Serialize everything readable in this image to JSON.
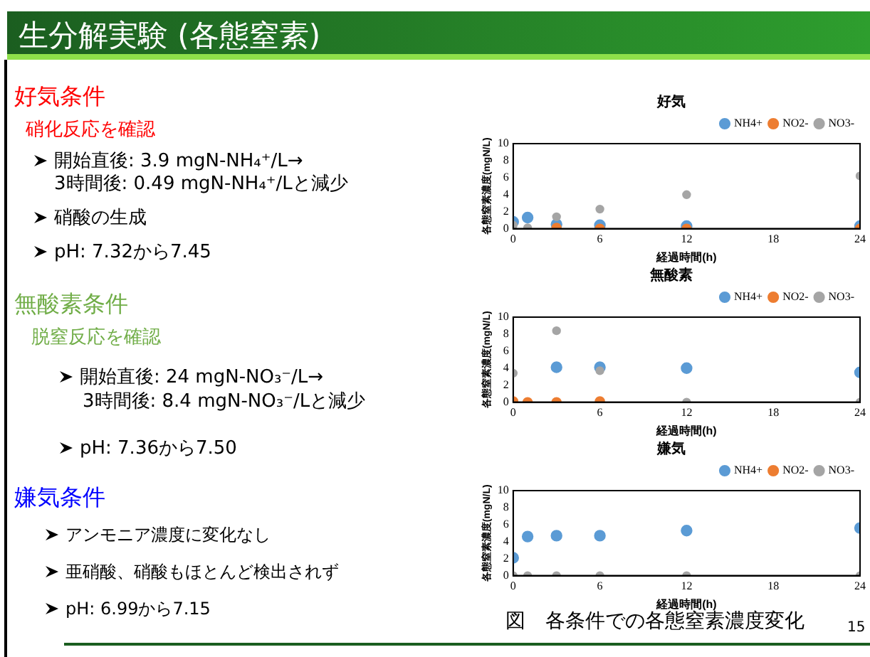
{
  "chart_data": [
    {
      "type": "other",
      "title": "生分解実験 (各態窒素)",
      "annotations": [
        "好気条件",
        "硝化反応を確認",
        "開始直後: 3.9 mgN-NH₄⁺/L→",
        "3時間後: 0.49 mgN-NH₄⁺/Lと減少",
        "硝酸の生成",
        "pH: 7.32から7.45",
        "無酸素条件",
        "脱窒反応を確認",
        "開始直後: 24 mgN-NO₃⁻/L→",
        "3時間後: 8.4 mgN-NO₃⁻/Lと減少",
        "pH: 7.36から7.50",
        "嫌気条件",
        "アンモニア濃度に変化なし",
        "亜硝酸、硝酸もほとんど検出されず",
        "pH: 6.99から7.15",
        "15"
      ]
    },
    {
      "type": "scatter",
      "title": "好気",
      "xlabel": "経過時間(h)",
      "ylabel": "各態窒素濃度(mgN/L)",
      "x": [
        0,
        1,
        3,
        6,
        12,
        24
      ],
      "xlim": [
        0,
        24
      ],
      "xticks": [
        0,
        6,
        12,
        18,
        24
      ],
      "ylim": [
        0,
        10
      ],
      "yticks": [
        0,
        2,
        4,
        6,
        8,
        10
      ],
      "legend": "top right",
      "marker": "circle",
      "grid": false,
      "series": [
        {
          "name": "NH4+",
          "color": "#5b9bd5",
          "values": [
            0.8,
            1.3,
            0.5,
            0.4,
            0.3,
            0.3
          ]
        },
        {
          "name": "NO2-",
          "color": "#ed7d31",
          "values": [
            null,
            null,
            0.1,
            0,
            0,
            0
          ]
        },
        {
          "name": "NO3-",
          "color": "#a5a5a5",
          "values": [
            0.4,
            0.1,
            1.4,
            2.3,
            4.0,
            6.2
          ]
        }
      ]
    },
    {
      "type": "scatter",
      "title": "無酸素",
      "xlabel": "経過時間(h)",
      "ylabel": "各態窒素濃度(mgN/L)",
      "x": [
        0,
        1,
        3,
        6,
        12,
        24
      ],
      "xlim": [
        0,
        24
      ],
      "xticks": [
        0,
        6,
        12,
        18,
        24
      ],
      "ylim": [
        0,
        10
      ],
      "yticks": [
        0,
        2,
        4,
        6,
        8,
        10
      ],
      "legend": "top right",
      "marker": "circle",
      "grid": false,
      "series": [
        {
          "name": "NH4+",
          "color": "#5b9bd5",
          "values": [
            null,
            null,
            4.1,
            4.1,
            4.0,
            3.5
          ]
        },
        {
          "name": "NO2-",
          "color": "#ed7d31",
          "values": [
            0.1,
            0,
            0,
            0.1,
            null,
            null
          ]
        },
        {
          "name": "NO3-",
          "color": "#a5a5a5",
          "values": [
            3.4,
            null,
            8.4,
            3.7,
            0,
            0
          ]
        }
      ]
    },
    {
      "type": "scatter",
      "title": "嫌気",
      "xlabel": "経過時間(h)",
      "ylabel": "各態窒素濃度(mgN/L)",
      "x": [
        0,
        1,
        3,
        6,
        12,
        24
      ],
      "xlim": [
        0,
        24
      ],
      "xticks": [
        0,
        6,
        12,
        18,
        24
      ],
      "ylim": [
        0,
        10
      ],
      "yticks": [
        0,
        2,
        4,
        6,
        8,
        10
      ],
      "legend": "top right",
      "marker": "circle",
      "grid": false,
      "annotations": [
        "図　各条件での各態窒素濃度変化"
      ],
      "series": [
        {
          "name": "NH4+",
          "color": "#5b9bd5",
          "values": [
            2.1,
            4.6,
            4.7,
            4.7,
            5.3,
            5.6
          ]
        },
        {
          "name": "NO2-",
          "color": "#ed7d31",
          "values": [
            null,
            null,
            null,
            null,
            null,
            null
          ]
        },
        {
          "name": "NO3-",
          "color": "#a5a5a5",
          "values": [
            0,
            0,
            0,
            0,
            0,
            0
          ]
        }
      ]
    }
  ]
}
